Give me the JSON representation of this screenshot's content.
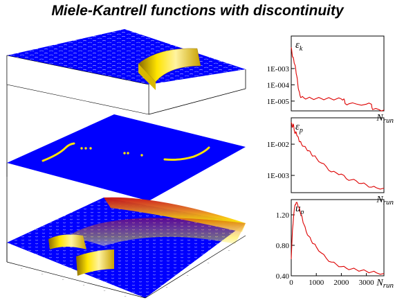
{
  "title": "Miele-Kantrell functions with discontinuity",
  "colors": {
    "surface_blue": "#0000FF",
    "surface_yellow": "#FFE400",
    "surface_orange": "#E07020",
    "surface_red": "#C81010",
    "line_red": "#DD0000",
    "axis": "#000000"
  },
  "chart_data": [
    {
      "type": "3d-surface",
      "panels": [
        "upper surface",
        "middle level slice",
        "lower surface"
      ],
      "description_colors": [
        "#0000FF",
        "#FFE400",
        "#C81010"
      ]
    },
    {
      "type": "line",
      "ylabel_sym": "ε",
      "ylabel_sub": "k",
      "xlabel_sym": "N",
      "xlabel_sub": "run",
      "y_scale": "log",
      "ylim": [
        2.5e-06,
        0.1
      ],
      "xlim": [
        0,
        3700
      ],
      "ytick_values": [
        0.001,
        0.0001,
        1e-05
      ],
      "ytick_labels": [
        "1E-003",
        "1E-004",
        "1E-005"
      ],
      "x": [
        0,
        30,
        60,
        100,
        140,
        180,
        220,
        260,
        300,
        350,
        400,
        500,
        650,
        800,
        1000,
        1200,
        1400,
        1600,
        1800,
        2000,
        2100,
        2150,
        2300,
        2600,
        3000,
        3200,
        3250,
        3500,
        3700
      ],
      "values": [
        0.02,
        0.009,
        0.005,
        0.0035,
        0.0018,
        0.0009,
        0.00035,
        0.00012,
        4.5e-05,
        2.2e-05,
        1.7e-05,
        1.6e-05,
        1.5e-05,
        1.48e-05,
        1.45e-05,
        1.42e-05,
        1.4e-05,
        1.38e-05,
        1.36e-05,
        1.35e-05,
        1.35e-05,
        7e-06,
        6.8e-06,
        6.6e-06,
        6.5e-06,
        6.4e-06,
        3e-06,
        3e-06,
        2.8e-06
      ]
    },
    {
      "type": "line",
      "ylabel_sym": "ε",
      "ylabel_sub": "p",
      "xlabel_sym": "N",
      "xlabel_sub": "run",
      "y_scale": "log",
      "ylim": [
        0.00028,
        0.07
      ],
      "xlim": [
        0,
        3700
      ],
      "ytick_values": [
        0.01,
        0.001
      ],
      "ytick_labels": [
        "1E-002",
        "1E-003"
      ],
      "x": [
        0,
        40,
        80,
        120,
        160,
        200,
        250,
        300,
        350,
        400,
        500,
        600,
        700,
        800,
        900,
        1000,
        1200,
        1400,
        1600,
        1800,
        2000,
        2200,
        2400,
        2600,
        2800,
        3000,
        3200,
        3400,
        3700
      ],
      "values": [
        0.05,
        0.035,
        0.045,
        0.028,
        0.022,
        0.024,
        0.018,
        0.014,
        0.012,
        0.0105,
        0.0085,
        0.0072,
        0.0062,
        0.0048,
        0.0042,
        0.0036,
        0.0025,
        0.0019,
        0.0013,
        0.0012,
        0.0011,
        0.00078,
        0.00072,
        0.00066,
        0.00055,
        0.0005,
        0.00042,
        0.0004,
        0.00039
      ]
    },
    {
      "type": "line",
      "ylabel_sym": "u",
      "ylabel_sub": "p",
      "xlabel_sym": "N",
      "xlabel_sub": "run",
      "y_scale": "linear",
      "ylim": [
        0.4,
        1.4
      ],
      "xlim": [
        0,
        3700
      ],
      "ytick_values": [
        1.2,
        0.8,
        0.4
      ],
      "ytick_labels": [
        "1.20",
        "0.80",
        "0.40"
      ],
      "xtick_values": [
        0,
        1000,
        2000,
        3000
      ],
      "xtick_labels": [
        "0",
        "1000",
        "2000",
        "3000"
      ],
      "x": [
        0,
        50,
        100,
        150,
        200,
        250,
        300,
        350,
        400,
        450,
        500,
        600,
        700,
        800,
        900,
        1000,
        1200,
        1400,
        1600,
        1800,
        2000,
        2200,
        2400,
        2600,
        2800,
        3000,
        3200,
        3400,
        3700
      ],
      "values": [
        0.62,
        1.0,
        1.2,
        1.33,
        1.36,
        1.34,
        1.3,
        1.25,
        1.2,
        1.14,
        1.08,
        0.98,
        0.92,
        0.86,
        0.82,
        0.78,
        0.7,
        0.63,
        0.58,
        0.55,
        0.52,
        0.5,
        0.49,
        0.48,
        0.47,
        0.46,
        0.45,
        0.44,
        0.43
      ]
    }
  ]
}
